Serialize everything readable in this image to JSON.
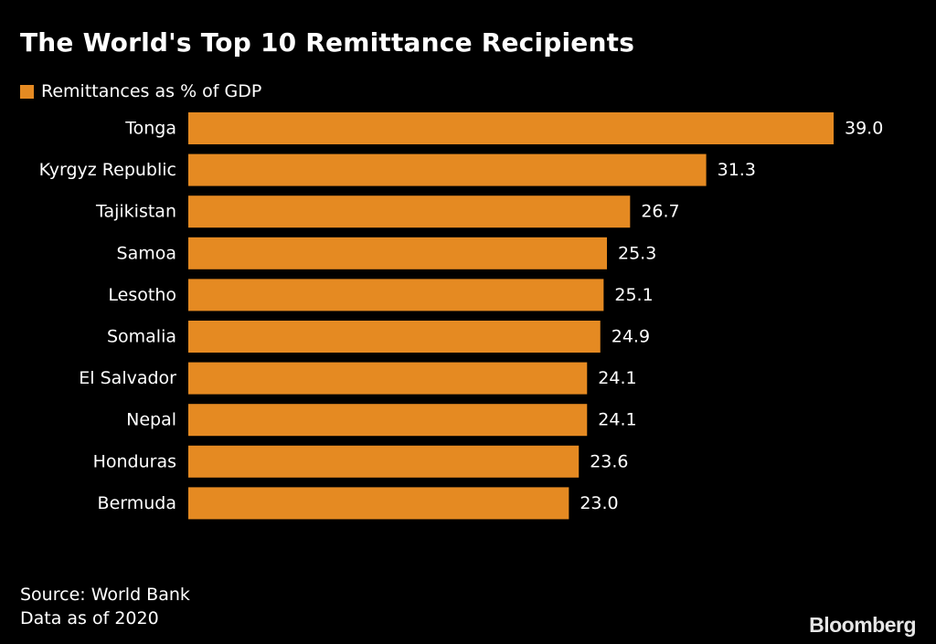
{
  "colors": {
    "background": "#000000",
    "bar": "#e58a22",
    "text": "#ffffff"
  },
  "chart_data": {
    "type": "bar",
    "orientation": "horizontal",
    "title": "The World's Top 10 Remittance Recipients",
    "legend": [
      "Remittances as % of GDP"
    ],
    "categories": [
      "Tonga",
      "Kyrgyz Republic",
      "Tajikistan",
      "Samoa",
      "Lesotho",
      "Somalia",
      "El Salvador",
      "Nepal",
      "Honduras",
      "Bermuda"
    ],
    "values": [
      39.0,
      31.3,
      26.7,
      25.3,
      25.1,
      24.9,
      24.1,
      24.1,
      23.6,
      23.0
    ],
    "value_labels": [
      "39.0",
      "31.3",
      "26.7",
      "25.3",
      "25.1",
      "24.9",
      "24.1",
      "24.1",
      "23.6",
      "23.0"
    ],
    "xlim": [
      0,
      39.0
    ],
    "xlabel": "",
    "ylabel": "",
    "grid": false
  },
  "footer": {
    "source": "Source: World Bank",
    "note": "Data as of 2020",
    "brand": "Bloomberg"
  }
}
